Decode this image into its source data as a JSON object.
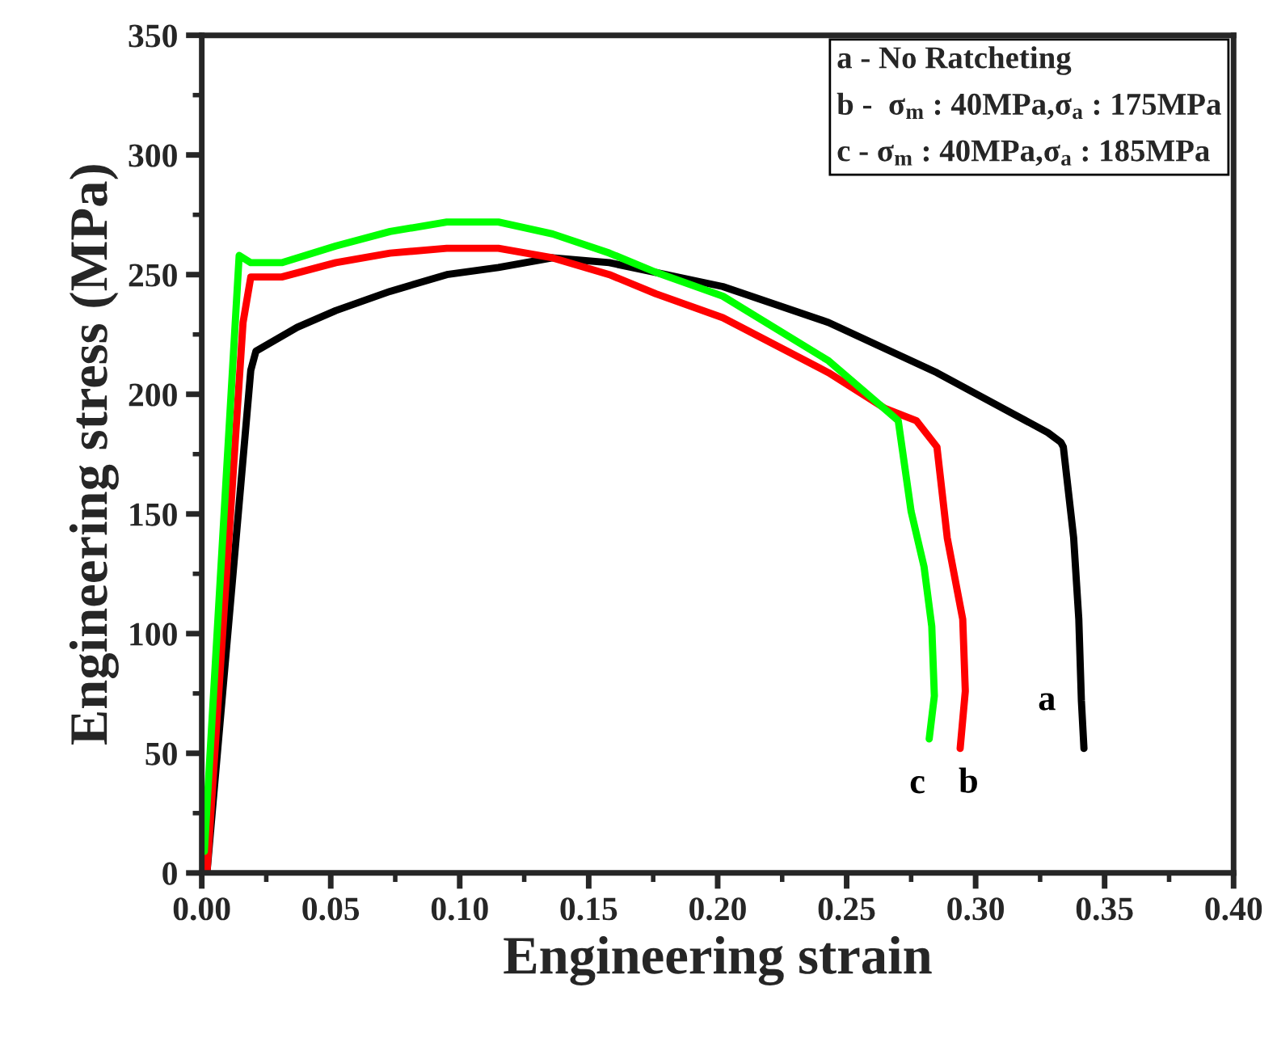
{
  "chart_data": {
    "type": "line",
    "xlabel": "Engineering strain",
    "ylabel": "Engineering stress (MPa)",
    "xlim": [
      0,
      0.4
    ],
    "ylim": [
      0,
      350
    ],
    "xticks": [
      {
        "value": 0,
        "label": "0.00"
      },
      0.05,
      {
        "value": 0.1,
        "label": "0.10"
      },
      0.15,
      {
        "value": 0.2,
        "label": "0.20"
      },
      0.25,
      {
        "value": 0.3,
        "label": "0.30"
      },
      0.35,
      {
        "value": 0.4,
        "label": "0.40"
      }
    ],
    "yticks": [
      0,
      50,
      100,
      150,
      200,
      250,
      300,
      350
    ],
    "grid": false,
    "legend": false,
    "marker": "none",
    "line_style": "solid",
    "annotations": [
      "a - No Ratcheting",
      "b -  σ$_{m}$ : 40MPa,σ$_{a}$ : 175MPa",
      "c - σ$_{m}$ : 40MPa,σ$_{a}$ : 185MPa"
    ],
    "series": [
      {
        "name": "a",
        "color": "#000000",
        "x": [
          0.002,
          0.019,
          0.021,
          0.037,
          0.052,
          0.073,
          0.095,
          0.115,
          0.136,
          0.158,
          0.202,
          0.243,
          0.285,
          0.328,
          0.333,
          0.334,
          0.338,
          0.34,
          0.341,
          0.342
        ],
        "values": [
          0,
          210,
          218,
          228,
          235,
          243,
          250,
          253,
          257,
          255,
          245,
          230,
          209,
          184,
          180,
          178,
          140,
          106,
          72,
          52
        ]
      },
      {
        "name": "b",
        "color": "#ff0000",
        "x": [
          0.002,
          0.016,
          0.019,
          0.031,
          0.052,
          0.073,
          0.095,
          0.115,
          0.136,
          0.158,
          0.176,
          0.202,
          0.243,
          0.265,
          0.277,
          0.285,
          0.289,
          0.295,
          0.296,
          0.294
        ],
        "values": [
          0,
          230,
          249,
          249,
          255,
          259,
          261,
          261,
          257,
          250,
          242,
          232,
          209,
          194,
          189,
          178,
          140,
          106,
          76,
          52
        ]
      },
      {
        "name": "c",
        "color": "#00ff00",
        "x": [
          0.001,
          0.0145,
          0.019,
          0.031,
          0.052,
          0.073,
          0.095,
          0.115,
          0.136,
          0.158,
          0.176,
          0.202,
          0.243,
          0.27,
          0.275,
          0.28,
          0.283,
          0.284,
          0.282
        ],
        "values": [
          9,
          258,
          255,
          255,
          262,
          268,
          272,
          272,
          267,
          259,
          251,
          241,
          214,
          189,
          151,
          128,
          103,
          74,
          56
        ]
      }
    ]
  }
}
